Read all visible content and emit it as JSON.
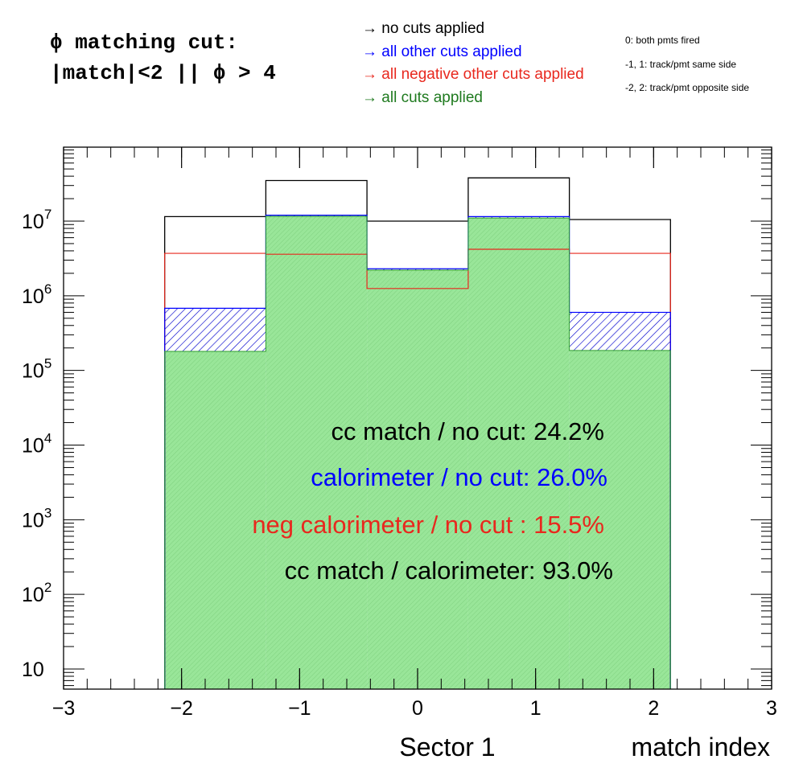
{
  "header": {
    "title_line1": "ϕ matching cut:",
    "title_line2": "|match|<2 || ϕ > 4"
  },
  "legend": [
    {
      "text": "→ no cuts applied",
      "color": "#000000"
    },
    {
      "text": "→ all other cuts applied",
      "color": "#0000ff"
    },
    {
      "text": "→ all negative other cuts applied",
      "color": "#e8281e"
    },
    {
      "text": "→ all cuts applied",
      "color": "#1f7a1f"
    }
  ],
  "notes": [
    "0: both pmts fired",
    "-1, 1: track/pmt same side",
    "-2, 2: track/pmt opposite side"
  ],
  "stats": [
    {
      "text": "cc match / no cut:  24.2%",
      "color": "#000000"
    },
    {
      "text": "calorimeter / no cut:  26.0%",
      "color": "#0000ff"
    },
    {
      "text": "neg calorimeter / no cut : 15.5%",
      "color": "#e8281e"
    },
    {
      "text": "cc match  / calorimeter: 93.0%",
      "color": "#000000"
    }
  ],
  "chart_data": {
    "type": "bar",
    "histogram": true,
    "bin_edges": [
      -2.143,
      -1.286,
      -0.429,
      0.429,
      1.286,
      2.143
    ],
    "categories": [
      "-2",
      "-1",
      "0",
      "1",
      "2"
    ],
    "series": [
      {
        "color": "#000000",
        "fill": "none",
        "values": [
          11500000,
          35000000,
          10000000,
          38000000,
          10500000
        ]
      },
      {
        "color": "#e8281e",
        "fill": "none",
        "values": [
          3700000,
          3600000,
          1250000,
          4200000,
          3700000
        ]
      },
      {
        "color": "#0000ff",
        "fill": "hatch",
        "values": [
          680000,
          12000000,
          2300000,
          11500000,
          600000
        ]
      },
      {
        "color": "#2e9e2e",
        "fill": "#99e699",
        "values": [
          180000,
          11600000,
          2200000,
          11000000,
          185000
        ]
      }
    ],
    "xlim": [
      -3,
      3
    ],
    "ylim": [
      5,
      100000000
    ],
    "yscale": "log",
    "xticks": [
      -3,
      -2,
      -1,
      0,
      1,
      2,
      3
    ],
    "xtick_labels": [
      "−3",
      "−2",
      "−1",
      "0",
      "1",
      "2",
      "3"
    ],
    "yticks": [
      10,
      100,
      1000,
      10000,
      100000,
      1000000,
      10000000
    ],
    "ytick_labels": [
      {
        "base": "10",
        "exp": ""
      },
      {
        "base": "10",
        "exp": "2"
      },
      {
        "base": "10",
        "exp": "3"
      },
      {
        "base": "10",
        "exp": "4"
      },
      {
        "base": "10",
        "exp": "5"
      },
      {
        "base": "10",
        "exp": "6"
      },
      {
        "base": "10",
        "exp": "7"
      }
    ],
    "xlabel_left": "Sector 1",
    "xlabel_right": "match index"
  }
}
